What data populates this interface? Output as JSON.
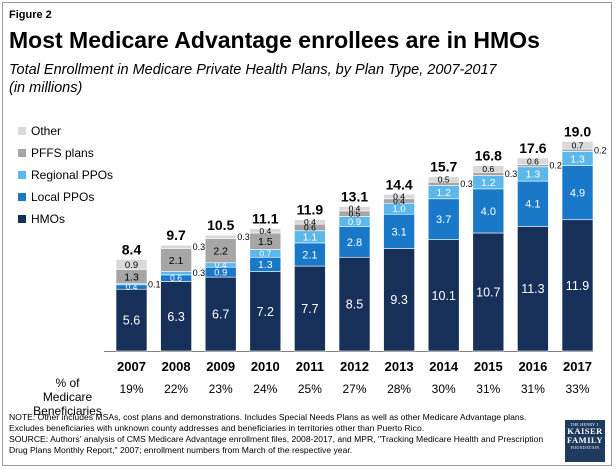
{
  "figure_label": "Figure 2",
  "title": "Most Medicare Advantage enrollees are in HMOs",
  "subtitle_line1": "Total Enrollment in Medicare Private Health Plans, by Plan Type, 2007-2017",
  "subtitle_line2": "(in millions)",
  "pct_row_label": "% of Medicare Beneficiaries",
  "note": "NOTE:  Other includes MSAs, cost plans and demonstrations.  Includes Special Needs Plans as well as other Medicare Advantage plans. Excludes beneficiaries with unknown county addresses and beneficiaries in territories other than Puerto Rico.",
  "source": "SOURCE:  Authors' analysis of CMS Medicare Advantage enrollment files, 2008-2017, and MPR, \"Tracking Medicare Health and Prescription Drug Plans Monthly Report,\" 2007; enrollment numbers from March of the respective year.",
  "logo": {
    "small_top": "THE HENRY J.",
    "line1": "KAISER",
    "line2": "FAMILY",
    "small_bottom": "FOUNDATION"
  },
  "colors": {
    "hmo": "#17305a",
    "local_ppo": "#1a78c8",
    "regional_ppo": "#5cb8ea",
    "pffs": "#a6a6a6",
    "other": "#d9d9d9"
  },
  "chart_data": {
    "type": "stacked-bar",
    "unit": "millions",
    "categories": [
      "2007",
      "2008",
      "2009",
      "2010",
      "2011",
      "2012",
      "2013",
      "2014",
      "2015",
      "2016",
      "2017"
    ],
    "series": [
      {
        "key": "hmo",
        "name": "HMOs",
        "values": [
          5.6,
          6.3,
          6.7,
          7.2,
          7.7,
          8.5,
          9.3,
          10.1,
          10.7,
          11.3,
          11.9
        ],
        "labels": [
          "5.6",
          "6.3",
          "6.7",
          "7.2",
          "7.7",
          "8.5",
          "9.3",
          "10.1",
          "10.7",
          "11.3",
          "11.9"
        ]
      },
      {
        "key": "local_ppo",
        "name": "Local PPOs",
        "values": [
          0.4,
          0.6,
          0.9,
          1.3,
          2.1,
          2.8,
          3.1,
          3.7,
          4.0,
          4.1,
          4.9
        ],
        "labels": [
          "0.4",
          "0.6",
          "0.9",
          "1.3",
          "2.1",
          "2.8",
          "3.1",
          "3.7",
          "4.0",
          "4.1",
          "4.9"
        ]
      },
      {
        "key": "regional_ppo",
        "name": "Regional PPOs",
        "values": [
          0.1,
          0.3,
          0.4,
          0.7,
          1.1,
          0.9,
          1.0,
          1.2,
          1.2,
          1.3,
          1.3
        ],
        "labels": [
          "0.1",
          "0.3",
          "0.4",
          "0.7",
          "1.1",
          "0.9",
          "1.0",
          "1.2",
          "1.2",
          "1.3",
          "1.3"
        ]
      },
      {
        "key": "pffs",
        "name": "PFFS plans",
        "values": [
          1.3,
          2.1,
          2.2,
          1.5,
          0.6,
          0.5,
          0.4,
          0.3,
          0.3,
          0.2,
          0.2
        ],
        "labels": [
          "1.3",
          "2.1",
          "2.2",
          "1.5",
          "0.6",
          "0.5",
          "0.4",
          "0.3",
          "0.3",
          "0.2",
          "0.2"
        ]
      },
      {
        "key": "other",
        "name": "Other",
        "values": [
          0.9,
          0.3,
          0.3,
          0.4,
          0.4,
          0.4,
          0.4,
          0.5,
          0.6,
          0.6,
          0.7
        ],
        "labels": [
          "0.9",
          "0.3",
          "0.3",
          "0.4",
          "0.4",
          "0.4",
          "0.4",
          "0.5",
          "0.6",
          "0.6",
          "0.7"
        ]
      }
    ],
    "totals": [
      "8.4",
      "9.7",
      "10.5",
      "11.1",
      "11.9",
      "13.1",
      "14.4",
      "15.7",
      "16.8",
      "17.6",
      "19.0"
    ],
    "pct_beneficiaries": [
      "19%",
      "22%",
      "23%",
      "24%",
      "25%",
      "27%",
      "28%",
      "30%",
      "31%",
      "31%",
      "33%"
    ],
    "legend_order": [
      "other",
      "pffs",
      "regional_ppo",
      "local_ppo",
      "hmo"
    ],
    "legend_position": "left",
    "ylim": [
      0,
      20
    ]
  }
}
